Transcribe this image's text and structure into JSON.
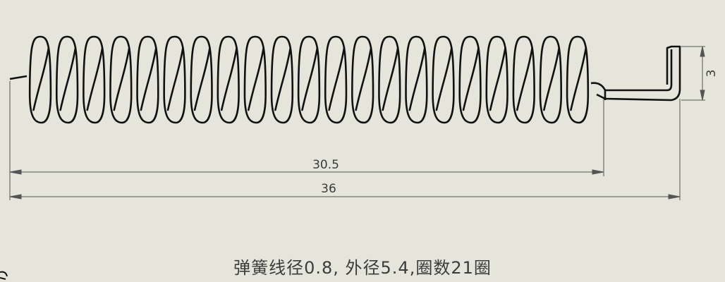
{
  "drawing": {
    "spring_coil_count": 21,
    "dimensions": {
      "coil_length": "30.5",
      "overall_length": "36",
      "hook_height": "3"
    },
    "note": "弹簧线径0.8, 外径5.4,圈数21圈"
  }
}
